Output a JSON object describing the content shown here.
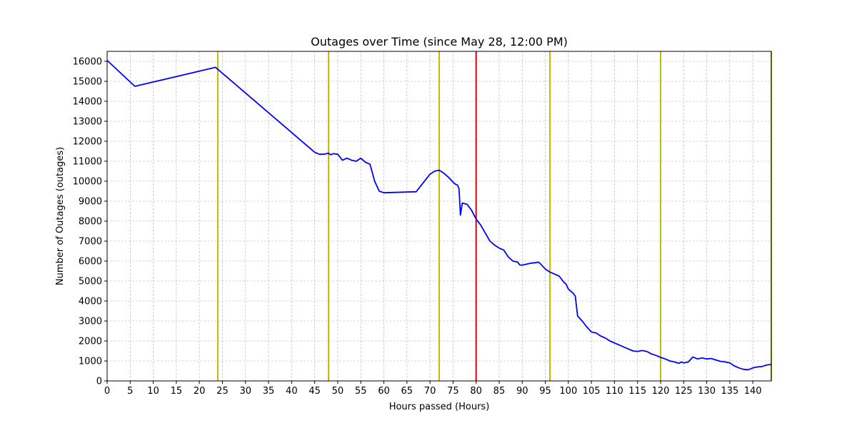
{
  "chart_data": {
    "type": "line",
    "title": "Outages over Time (since May 28, 12:00 PM)",
    "xlabel": "Hours passed (Hours)",
    "ylabel": "Number of Outages (outages)",
    "xlim": [
      0,
      144
    ],
    "ylim": [
      0,
      16500
    ],
    "xticks": [
      0,
      5,
      10,
      15,
      20,
      25,
      30,
      35,
      40,
      45,
      50,
      55,
      60,
      65,
      70,
      75,
      80,
      85,
      90,
      95,
      100,
      105,
      110,
      115,
      120,
      125,
      130,
      135,
      140
    ],
    "yticks": [
      0,
      1000,
      2000,
      3000,
      4000,
      5000,
      6000,
      7000,
      8000,
      9000,
      10000,
      11000,
      12000,
      13000,
      14000,
      15000,
      16000
    ],
    "grid": true,
    "series": [
      {
        "color": "#0000ff",
        "x": [
          0,
          6,
          23.5,
          45,
          46,
          47,
          48,
          48.5,
          49,
          50,
          51,
          52,
          53,
          54,
          55,
          56,
          57,
          58,
          59,
          60,
          67,
          70,
          71,
          72,
          73,
          74,
          75,
          75.5,
          76,
          76.3,
          76.6,
          77,
          78,
          79,
          80,
          81,
          82,
          83,
          84,
          85,
          86,
          87,
          88,
          89,
          89.5,
          90,
          91,
          92,
          93,
          93.5,
          94,
          95,
          96,
          97,
          98,
          99,
          99.5,
          100,
          101,
          101.5,
          102,
          103,
          104,
          105,
          106,
          107,
          108,
          109,
          110,
          111,
          112,
          113,
          114,
          115,
          116,
          117,
          118,
          119,
          120,
          121,
          122,
          123,
          124,
          124.5,
          125,
          126,
          127,
          128,
          129,
          130,
          131,
          132,
          133,
          134,
          135,
          136,
          137,
          138,
          139,
          140,
          141,
          142,
          143,
          144
        ],
        "values": [
          16050,
          14750,
          15700,
          11450,
          11350,
          11350,
          11400,
          11320,
          11380,
          11350,
          11050,
          11150,
          11050,
          11000,
          11150,
          10950,
          10850,
          10000,
          9500,
          9420,
          9470,
          10350,
          10500,
          10550,
          10400,
          10200,
          9950,
          9850,
          9800,
          9600,
          8300,
          8900,
          8850,
          8550,
          8100,
          7800,
          7400,
          7000,
          6800,
          6650,
          6550,
          6200,
          6000,
          5950,
          5800,
          5800,
          5850,
          5900,
          5920,
          5950,
          5850,
          5600,
          5450,
          5350,
          5250,
          4950,
          4850,
          4600,
          4400,
          4250,
          3250,
          3000,
          2700,
          2450,
          2400,
          2250,
          2150,
          2000,
          1900,
          1800,
          1700,
          1600,
          1500,
          1480,
          1520,
          1480,
          1350,
          1280,
          1180,
          1100,
          1000,
          950,
          880,
          950,
          900,
          950,
          1200,
          1100,
          1150,
          1100,
          1120,
          1050,
          980,
          950,
          900,
          750,
          650,
          580,
          560,
          650,
          700,
          720,
          800,
          820
        ]
      }
    ],
    "vlines": [
      {
        "x": 24,
        "color": "#bfbf00"
      },
      {
        "x": 48,
        "color": "#bfbf00"
      },
      {
        "x": 72,
        "color": "#bfbf00"
      },
      {
        "x": 80,
        "color": "#e00000"
      },
      {
        "x": 96,
        "color": "#bfbf00"
      },
      {
        "x": 120,
        "color": "#bfbf00"
      },
      {
        "x": 144,
        "color": "#bfbf00"
      }
    ]
  }
}
